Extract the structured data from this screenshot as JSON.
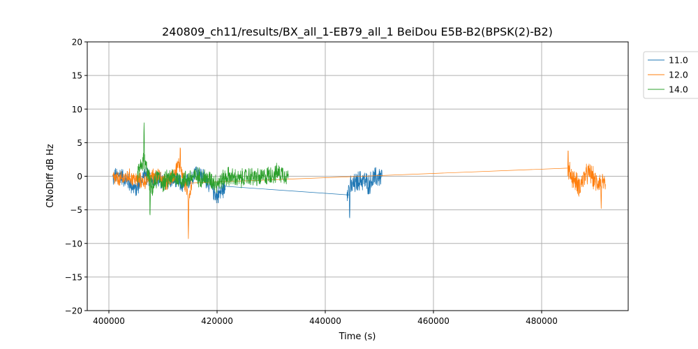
{
  "chart_data": {
    "type": "line",
    "title": "240809_ch11/results/BX_all_1-EB79_all_1 BeiDou E5B-B2(BPSK(2)-B2)",
    "xlabel": "Time (s)",
    "ylabel": "CNoDiff dB Hz",
    "xlim": [
      396000,
      496000
    ],
    "ylim": [
      -20,
      20
    ],
    "x_ticks": [
      400000,
      420000,
      440000,
      460000,
      480000
    ],
    "x_tick_labels": [
      "400000",
      "420000",
      "440000",
      "460000",
      "480000"
    ],
    "y_ticks": [
      -20,
      -15,
      -10,
      -5,
      0,
      5,
      10,
      15,
      20
    ],
    "y_tick_labels": [
      "−20",
      "−15",
      "−10",
      "−5",
      "0",
      "5",
      "10",
      "15",
      "20"
    ],
    "grid": true,
    "legend_position": "outside-top-right",
    "series": [
      {
        "name": "11.0",
        "color": "#1f77b4",
        "segments": [
          {
            "x": [
              400700,
              402000,
              403500,
              405000,
              406500,
              408000,
              410000,
              412000,
              414000,
              416000,
              418000,
              420000,
              421500
            ],
            "y": [
              -0.3,
              0.3,
              -0.8,
              -2.0,
              0.2,
              -0.5,
              -0.8,
              -0.5,
              -1.5,
              0.8,
              -0.5,
              -3.0,
              -1.5
            ],
            "amp": 1.6
          },
          {
            "x": [
              421500,
              444500
            ],
            "y": [
              -1.5,
              -2.8
            ],
            "amp": 0
          },
          {
            "x": [
              444000,
              445000,
              446000,
              447000,
              448000,
              449000,
              450500
            ],
            "y": [
              -2.0,
              -1.5,
              -0.8,
              -0.5,
              -1.2,
              -0.3,
              0.0
            ],
            "amp": 1.9
          }
        ]
      },
      {
        "name": "12.0",
        "color": "#ff7f0e",
        "segments": [
          {
            "x": [
              400700,
              402000,
              403500,
              405000,
              406500,
              408500,
              410500,
              412000,
              413000,
              414000,
              414800,
              415300
            ],
            "y": [
              -0.2,
              -0.6,
              0.0,
              -0.5,
              -0.8,
              0.3,
              -1.0,
              0.2,
              2.0,
              -1.0,
              -3.0,
              -1.0
            ],
            "amp": 1.4
          },
          {
            "x": [
              415300,
              484800
            ],
            "y": [
              -1.0,
              1.2
            ],
            "amp": 0
          },
          {
            "x": [
              484800,
              486000,
              487000,
              488000,
              489000,
              490000,
              491000,
              491800
            ],
            "y": [
              1.0,
              -0.5,
              -1.5,
              0.0,
              0.5,
              -1.0,
              -0.5,
              -2.0
            ],
            "amp": 1.9
          }
        ]
      },
      {
        "name": "14.0",
        "color": "#2ca02c",
        "segments": [
          {
            "x": [
              405300,
              406000,
              406500,
              407000,
              408000,
              409000,
              410000,
              411500,
              413000,
              414000,
              416000,
              418000,
              420000,
              422000,
              424000,
              426000,
              428000,
              430000,
              432000,
              433200
            ],
            "y": [
              0.5,
              1.5,
              2.5,
              0.8,
              -2.0,
              0.0,
              -1.0,
              0.0,
              -0.5,
              -0.5,
              0.0,
              -0.3,
              -1.0,
              0.0,
              -0.5,
              0.0,
              -0.3,
              0.3,
              0.5,
              0.0
            ],
            "amp": 1.7
          }
        ]
      }
    ],
    "spikes": [
      {
        "series": "14.0",
        "x": 406500,
        "y": 8.0
      },
      {
        "series": "14.0",
        "x": 407600,
        "y": -6.5
      },
      {
        "series": "12.0",
        "x": 414700,
        "y": -9.3
      },
      {
        "series": "12.0",
        "x": 413200,
        "y": 4.7
      },
      {
        "series": "11.0",
        "x": 444500,
        "y": -7.0
      },
      {
        "series": "12.0",
        "x": 484900,
        "y": 4.2
      },
      {
        "series": "12.0",
        "x": 491000,
        "y": -4.8
      }
    ]
  }
}
